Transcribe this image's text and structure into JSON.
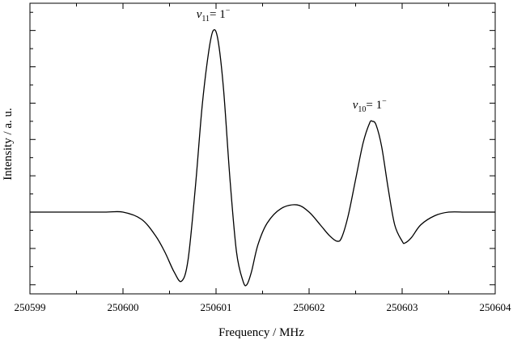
{
  "chart_data": {
    "type": "line",
    "title": "",
    "xlabel": "Frequency  /  MHz",
    "ylabel": "Intensity  /  a. u.",
    "xlim": [
      250599,
      250604
    ],
    "ylim": [
      -0.45,
      1.15
    ],
    "x_ticks": [
      250599,
      250600,
      250601,
      250602,
      250603,
      250604
    ],
    "y_ticks_labeled": false,
    "grid": false,
    "legend": "none",
    "line_color": "#000000",
    "series": [
      {
        "x": [
          250599.0,
          250599.4,
          250599.8,
          250600.0,
          250600.2,
          250600.35,
          250600.45,
          250600.55,
          250600.63,
          250600.7,
          250600.78,
          250600.85,
          250600.92,
          250600.97,
          250601.02,
          250601.08,
          250601.15,
          250601.22,
          250601.29,
          250601.33,
          250601.38,
          250601.45,
          250601.55,
          250601.7,
          250601.87,
          250602.0,
          250602.12,
          250602.22,
          250602.3,
          250602.35,
          250602.42,
          250602.5,
          250602.58,
          250602.65,
          250602.68,
          250602.72,
          250602.78,
          250602.85,
          250602.92,
          250603.0,
          250603.03,
          250603.1,
          250603.2,
          250603.35,
          250603.5,
          250603.7,
          250604.0
        ],
        "y": [
          0.0,
          0.0,
          0.0,
          0.0,
          -0.04,
          -0.13,
          -0.22,
          -0.33,
          -0.38,
          -0.26,
          0.15,
          0.58,
          0.88,
          1.0,
          0.95,
          0.68,
          0.18,
          -0.22,
          -0.38,
          -0.4,
          -0.33,
          -0.18,
          -0.06,
          0.02,
          0.04,
          0.0,
          -0.07,
          -0.13,
          -0.16,
          -0.14,
          -0.02,
          0.18,
          0.38,
          0.49,
          0.5,
          0.48,
          0.36,
          0.13,
          -0.07,
          -0.16,
          -0.17,
          -0.14,
          -0.07,
          -0.02,
          0.0,
          0.0,
          0.0
        ]
      }
    ],
    "annotations": [
      {
        "x": 250600.97,
        "y": 1.07,
        "text": "v",
        "sub": "11",
        "mid": "= 1",
        "sup": "−"
      },
      {
        "x": 250602.65,
        "y": 0.57,
        "text": "v",
        "sub": "10",
        "mid": "= 1",
        "sup": "−"
      }
    ]
  }
}
